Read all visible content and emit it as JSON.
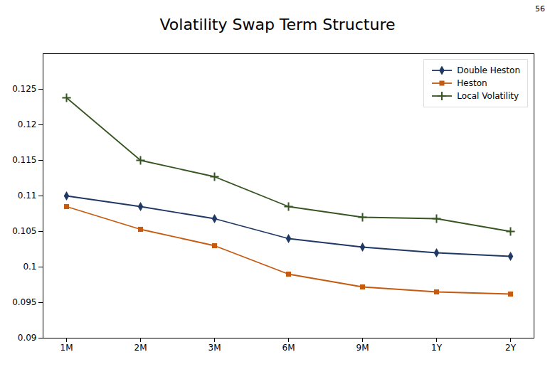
{
  "chart_data": {
    "type": "line",
    "title": "Volatility Swap Term Structure",
    "annotations": [
      "56"
    ],
    "categories": [
      "1M",
      "2M",
      "3M",
      "6M",
      "9M",
      "1Y",
      "2Y"
    ],
    "series": [
      {
        "name": "Double Heston",
        "color": "#1F3864",
        "marker": "diamond",
        "values": [
          0.11,
          0.1085,
          0.1068,
          0.104,
          0.1028,
          0.102,
          0.1015
        ]
      },
      {
        "name": "Heston",
        "color": "#C55A11",
        "marker": "square",
        "values": [
          0.1085,
          0.1053,
          0.103,
          0.099,
          0.0972,
          0.0965,
          0.0962
        ]
      },
      {
        "name": "Local Volatility",
        "color": "#375623",
        "marker": "plus",
        "values": [
          0.1238,
          0.115,
          0.1127,
          0.1085,
          0.107,
          0.1068,
          0.105
        ]
      }
    ],
    "ylim": [
      0.09,
      0.13
    ],
    "yticks": [
      0.125,
      0.12,
      0.115,
      0.11,
      0.105,
      0.1,
      0.095,
      0.09
    ],
    "grid": false,
    "legend": "upper right"
  }
}
